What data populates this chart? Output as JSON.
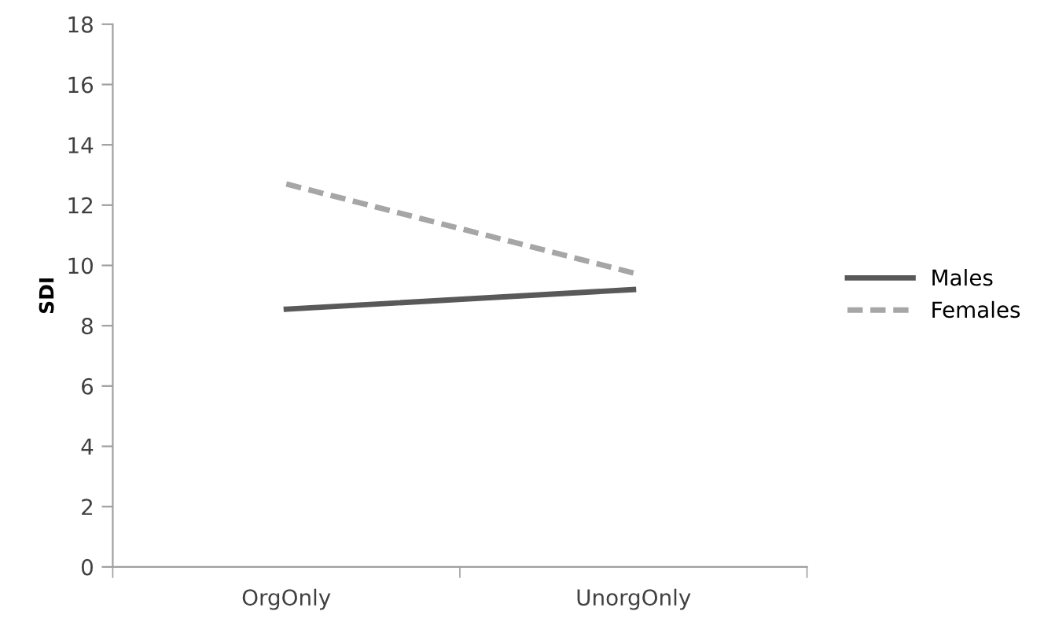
{
  "chart_data": {
    "type": "line",
    "ylabel": "SDI",
    "categories": [
      "OrgOnly",
      "UnorgOnly"
    ],
    "series": [
      {
        "name": "Males",
        "color": "#595959",
        "values": [
          8.55,
          9.2
        ],
        "line_style": "solid"
      },
      {
        "name": "Females",
        "color": "#a6a6a6",
        "values": [
          12.7,
          9.75
        ],
        "line_style": "dashed"
      }
    ],
    "ylim": [
      0,
      18
    ],
    "yticks": [
      0,
      2,
      4,
      6,
      8,
      10,
      12,
      14,
      16,
      18
    ],
    "grid": false,
    "legend": "right",
    "marker": "none"
  }
}
